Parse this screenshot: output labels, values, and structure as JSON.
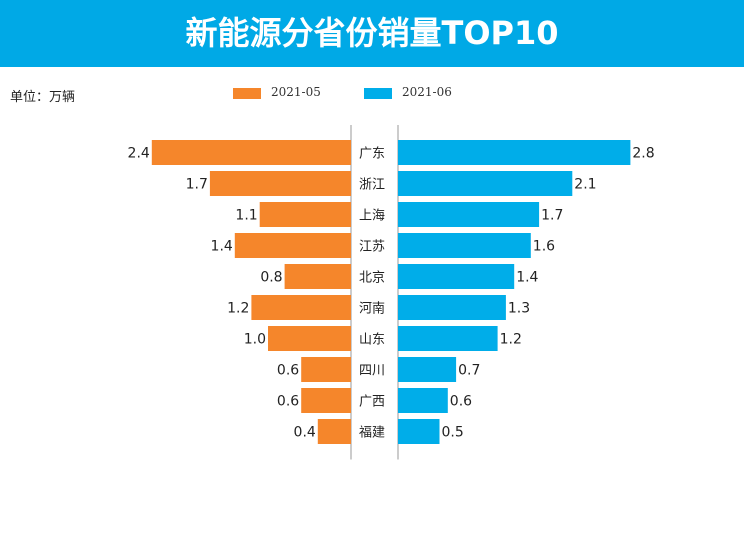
{
  "title": "新能源分省份销量TOP10",
  "unit_label": "单位：万辆",
  "colors": {
    "banner": "#00a9e6",
    "series_a": "#f5862b",
    "series_b": "#00ade9"
  },
  "chart_data": {
    "type": "bar",
    "orientation": "horizontal-butterfly",
    "categories": [
      "广东",
      "浙江",
      "上海",
      "江苏",
      "北京",
      "河南",
      "山东",
      "四川",
      "广西",
      "福建"
    ],
    "series": [
      {
        "name": "2021-05",
        "values": [
          2.4,
          1.7,
          1.1,
          1.4,
          0.8,
          1.2,
          1.0,
          0.6,
          0.6,
          0.4
        ],
        "labels": [
          "2.4",
          "1.7",
          "1.1",
          "1.4",
          "0.8",
          "1.2",
          "1.0",
          "0.6",
          "0.6",
          "0.4"
        ]
      },
      {
        "name": "2021-06",
        "values": [
          2.8,
          2.1,
          1.7,
          1.6,
          1.4,
          1.3,
          1.2,
          0.7,
          0.6,
          0.5
        ],
        "labels": [
          "2.8",
          "2.1",
          "1.7",
          "1.6",
          "1.4",
          "1.3",
          "1.2",
          "0.7",
          "0.6",
          "0.5"
        ]
      }
    ],
    "legend_position": "top"
  }
}
